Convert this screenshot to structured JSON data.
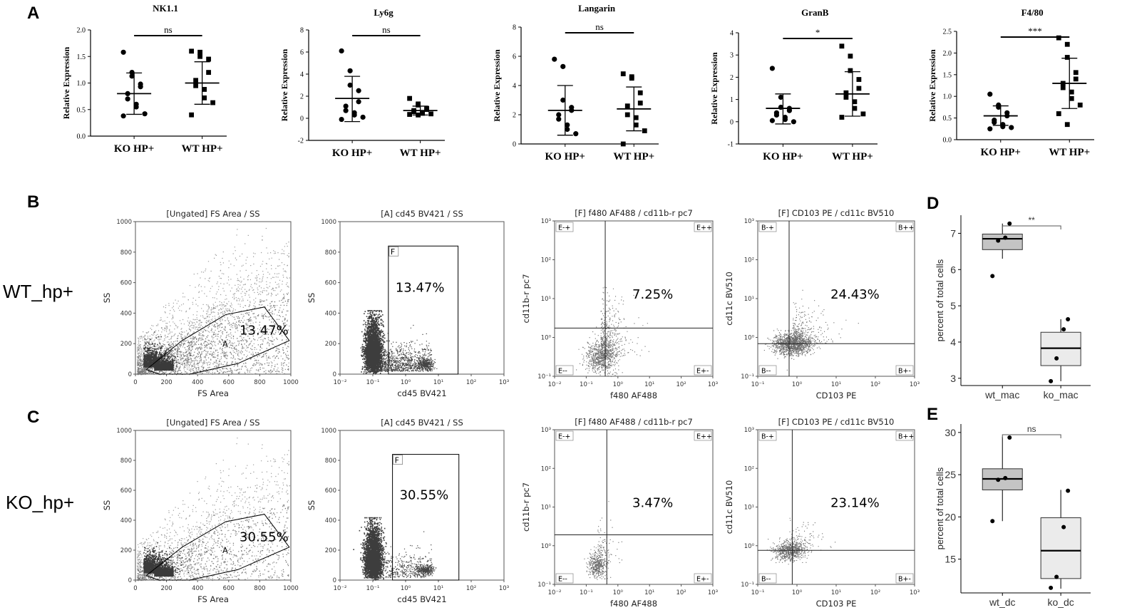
{
  "panel_letters": {
    "A": "A",
    "B": "B",
    "C": "C",
    "D": "D",
    "E": "E"
  },
  "row_labels": {
    "wt": "WT_hp+",
    "ko": "KO_hp+"
  },
  "chart_data": [
    {
      "id": "nk11",
      "type": "scatter",
      "title": "NK1.1",
      "ylabel": "Relative Expression",
      "categories": [
        "KO HP+",
        "WT HP+"
      ],
      "ylim": [
        0,
        2.0
      ],
      "yticks": [
        "0.0",
        "0.5",
        "1.0",
        "1.5",
        "2.0"
      ],
      "ytick_values": [
        0,
        0.5,
        1.0,
        1.5,
        2.0
      ],
      "significance": "ns",
      "series": [
        {
          "name": "KO HP+",
          "marker": "circle",
          "mean": 0.8,
          "sd_low": 0.41,
          "sd_high": 1.19,
          "values": [
            1.58,
            1.2,
            1.13,
            0.98,
            0.93,
            0.8,
            0.7,
            0.6,
            0.55,
            0.42,
            0.38
          ]
        },
        {
          "name": "WT HP+",
          "marker": "square",
          "mean": 1.0,
          "sd_low": 0.6,
          "sd_high": 1.4,
          "values": [
            1.6,
            1.58,
            1.5,
            1.45,
            1.2,
            1.05,
            0.95,
            0.88,
            0.72,
            0.63,
            0.4
          ]
        }
      ]
    },
    {
      "id": "ly6g",
      "type": "scatter",
      "title": "Ly6g",
      "ylabel": "Relative Expression",
      "categories": [
        "KO HP+",
        "WT HP+"
      ],
      "ylim": [
        -2,
        8
      ],
      "yticks": [
        "-2",
        "0",
        "2",
        "4",
        "6",
        "8"
      ],
      "ytick_values": [
        -2,
        0,
        2,
        4,
        6,
        8
      ],
      "significance": "ns",
      "series": [
        {
          "name": "KO HP+",
          "marker": "circle",
          "mean": 1.8,
          "sd_low": -0.3,
          "sd_high": 3.8,
          "values": [
            6.1,
            4.3,
            3.0,
            2.5,
            1.5,
            1.1,
            0.7,
            0.5,
            0.3,
            0.1,
            -0.1
          ]
        },
        {
          "name": "WT HP+",
          "marker": "square",
          "mean": 0.7,
          "sd_low": 0.3,
          "sd_high": 1.1,
          "values": [
            1.8,
            1.3,
            1.2,
            0.9,
            0.8,
            0.7,
            0.6,
            0.5,
            0.45,
            0.4,
            0.35,
            0.3
          ]
        }
      ]
    },
    {
      "id": "langarin",
      "type": "scatter",
      "title": "Langarin",
      "ylabel": "Relative Expression",
      "categories": [
        "KO HP+",
        "WT HP+"
      ],
      "ylim": [
        0,
        8
      ],
      "yticks": [
        "0",
        "2",
        "4",
        "6",
        "8"
      ],
      "ytick_values": [
        0,
        2,
        4,
        6,
        8
      ],
      "significance": "ns",
      "series": [
        {
          "name": "KO HP+",
          "marker": "circle",
          "mean": 2.3,
          "sd_low": 0.6,
          "sd_high": 4.0,
          "values": [
            5.8,
            5.3,
            3.0,
            2.5,
            2.3,
            2.0,
            1.7,
            1.3,
            1.0,
            0.7
          ]
        },
        {
          "name": "WT HP+",
          "marker": "square",
          "mean": 2.4,
          "sd_low": 0.9,
          "sd_high": 3.9,
          "values": [
            4.8,
            4.6,
            4.5,
            3.5,
            2.8,
            2.6,
            2.0,
            1.8,
            1.3,
            0.9,
            0.0
          ]
        }
      ]
    },
    {
      "id": "granb",
      "type": "scatter",
      "title": "GranB",
      "ylabel": "Relative Expression",
      "categories": [
        "KO HP+",
        "WT HP+"
      ],
      "ylim": [
        -1,
        4
      ],
      "yticks": [
        "-1",
        "0",
        "1",
        "2",
        "3",
        "4"
      ],
      "ytick_values": [
        -1,
        0,
        1,
        2,
        3,
        4
      ],
      "significance": "*",
      "series": [
        {
          "name": "KO HP+",
          "marker": "circle",
          "mean": 0.6,
          "sd_low": -0.1,
          "sd_high": 1.25,
          "values": [
            2.4,
            1.1,
            0.65,
            0.6,
            0.5,
            0.4,
            0.3,
            0.2,
            0.1,
            0.0,
            0.05
          ]
        },
        {
          "name": "WT HP+",
          "marker": "square",
          "mean": 1.25,
          "sd_low": 0.25,
          "sd_high": 2.25,
          "values": [
            3.4,
            2.95,
            2.3,
            1.9,
            1.5,
            1.3,
            1.1,
            0.9,
            0.6,
            0.35,
            0.2
          ]
        }
      ]
    },
    {
      "id": "f480",
      "type": "scatter",
      "title": "F4/80",
      "ylabel": "Relative Expression",
      "categories": [
        "KO HP+",
        "WT HP+"
      ],
      "ylim": [
        0,
        2.5
      ],
      "yticks": [
        "0.0",
        "0.5",
        "1.0",
        "1.5",
        "2.0",
        "2.5"
      ],
      "ytick_values": [
        0,
        0.5,
        1.0,
        1.5,
        2.0,
        2.5
      ],
      "significance": "***",
      "series": [
        {
          "name": "KO HP+",
          "marker": "circle",
          "mean": 0.55,
          "sd_low": 0.33,
          "sd_high": 0.78,
          "values": [
            1.05,
            0.8,
            0.75,
            0.62,
            0.55,
            0.45,
            0.4,
            0.35,
            0.3,
            0.28,
            0.25
          ]
        },
        {
          "name": "WT HP+",
          "marker": "square",
          "mean": 1.3,
          "sd_low": 0.72,
          "sd_high": 1.88,
          "values": [
            2.35,
            2.2,
            1.9,
            1.55,
            1.4,
            1.3,
            1.2,
            1.1,
            0.95,
            0.8,
            0.6,
            0.35
          ]
        }
      ]
    },
    {
      "id": "B1",
      "type": "scatter",
      "title": "[Ungated] FS Area / SS",
      "xlabel": "FS Area",
      "ylabel": "SS",
      "xlim": [
        0,
        1000
      ],
      "ylim": [
        0,
        1000
      ],
      "scale": "linear",
      "xticks": [
        "0",
        "200",
        "400",
        "600",
        "800",
        "1000"
      ],
      "yticks": [
        "0",
        "200",
        "400",
        "600",
        "800",
        "1000"
      ],
      "gate_label": "A",
      "gate_percent": "13.47%"
    },
    {
      "id": "B2",
      "type": "scatter",
      "title": "[A] cd45 BV421 / SS",
      "xlabel": "cd45 BV421",
      "ylabel": "SS",
      "xscale": "log",
      "xlim_exp": [
        -2,
        3
      ],
      "ylim": [
        0,
        1000
      ],
      "xticks": [
        "10⁻²",
        "10⁻¹",
        "10⁰",
        "10¹",
        "10²",
        "10³"
      ],
      "yticks": [
        "0",
        "200",
        "400",
        "600",
        "800",
        "1000"
      ],
      "gate_label": "F",
      "gate_percent": "13.47%"
    },
    {
      "id": "B3",
      "type": "scatter",
      "title": "[F] f480 AF488 / cd11b-r pc7",
      "xlabel": "f480 AF488",
      "ylabel": "cd11b-r pc7",
      "xscale": "log",
      "yscale": "log",
      "xticks": [
        "10⁻²",
        "10⁻¹",
        "10⁰",
        "10¹",
        "10²",
        "10³"
      ],
      "yticks": [
        "10⁻¹",
        "10⁰",
        "10¹",
        "10²",
        "10³"
      ],
      "quadrants": {
        "tl": "E-+",
        "tr": "E++",
        "bl": "E--",
        "br": "E+-"
      },
      "gate_percent": "7.25%"
    },
    {
      "id": "B4",
      "type": "scatter",
      "title": "[F] CD103 PE / cd11c BV510",
      "xlabel": "CD103 PE",
      "ylabel": "cd11c BV510",
      "xscale": "log",
      "yscale": "log",
      "xticks": [
        "10⁻¹",
        "10⁰",
        "10¹",
        "10²",
        "10³"
      ],
      "yticks": [
        "10⁻¹",
        "10⁰",
        "10¹",
        "10²",
        "10³"
      ],
      "quadrants": {
        "tl": "B-+",
        "tr": "B++",
        "bl": "B--",
        "br": "B+-"
      },
      "gate_percent": "24.43%"
    },
    {
      "id": "C1",
      "type": "scatter",
      "title": "[Ungated] FS Area / SS",
      "xlabel": "FS Area",
      "ylabel": "SS",
      "xlim": [
        0,
        1000
      ],
      "ylim": [
        0,
        1000
      ],
      "scale": "linear",
      "xticks": [
        "0",
        "200",
        "400",
        "600",
        "800",
        "1000"
      ],
      "yticks": [
        "0",
        "200",
        "400",
        "600",
        "800",
        "1000"
      ],
      "gate_label": "A",
      "gate_percent": "30.55%"
    },
    {
      "id": "C2",
      "type": "scatter",
      "title": "[A] cd45 BV421 / SS",
      "xlabel": "cd45 BV421",
      "ylabel": "SS",
      "xscale": "log",
      "xlim_exp": [
        -2,
        3
      ],
      "ylim": [
        0,
        1000
      ],
      "xticks": [
        "10⁻²",
        "10⁻¹",
        "10⁰",
        "10¹",
        "10²",
        "10³"
      ],
      "yticks": [
        "0",
        "200",
        "400",
        "600",
        "800",
        "1000"
      ],
      "gate_label": "F",
      "gate_percent": "30.55%"
    },
    {
      "id": "C3",
      "type": "scatter",
      "title": "[F] f480 AF488 / cd11b-r pc7",
      "xlabel": "f480 AF488",
      "ylabel": "cd11b-r pc7",
      "xscale": "log",
      "yscale": "log",
      "xticks": [
        "10⁻²",
        "10⁻¹",
        "10⁰",
        "10¹",
        "10²",
        "10³"
      ],
      "yticks": [
        "10⁻¹",
        "10⁰",
        "10¹",
        "10²",
        "10³"
      ],
      "quadrants": {
        "tl": "E-+",
        "tr": "E++",
        "bl": "E--",
        "br": "E+-"
      },
      "gate_percent": "3.47%"
    },
    {
      "id": "C4",
      "type": "scatter",
      "title": "[F] CD103 PE / cd11c BV510",
      "xlabel": "CD103 PE",
      "ylabel": "cd11c BV510",
      "xscale": "log",
      "yscale": "log",
      "xticks": [
        "10⁻¹",
        "10⁰",
        "10¹",
        "10²",
        "10³"
      ],
      "yticks": [
        "10⁻¹",
        "10⁰",
        "10¹",
        "10²",
        "10³"
      ],
      "quadrants": {
        "tl": "B-+",
        "tr": "B++",
        "bl": "B--",
        "br": "B+-"
      },
      "gate_percent": "23.14%"
    },
    {
      "id": "D",
      "type": "box",
      "ylabel": "percent of total cells",
      "categories": [
        "wt_mac",
        "ko_mac"
      ],
      "ylim": [
        2.8,
        7.5
      ],
      "yticks": [
        "3",
        "4",
        "5",
        "6",
        "7"
      ],
      "ytick_values": [
        3,
        4,
        5,
        6,
        7
      ],
      "significance": "**",
      "boxes": [
        {
          "name": "wt_mac",
          "q1": 6.55,
          "median": 6.85,
          "q3": 6.98,
          "whisker_low": 6.3,
          "whisker_high": 7.27,
          "points": [
            7.27,
            6.88,
            6.8,
            5.82
          ],
          "fill": "#c4c4c4"
        },
        {
          "name": "ko_mac",
          "q1": 3.35,
          "median": 3.83,
          "q3": 4.27,
          "whisker_low": 2.92,
          "whisker_high": 4.63,
          "points": [
            4.63,
            4.35,
            3.55,
            2.92
          ],
          "fill": "#ebebeb"
        }
      ]
    },
    {
      "id": "E",
      "type": "box",
      "ylabel": "percent of total cells",
      "categories": [
        "wt_dc",
        "ko_dc"
      ],
      "ylim": [
        11,
        31
      ],
      "yticks": [
        "15",
        "20",
        "25",
        "30"
      ],
      "ytick_values": [
        15,
        20,
        25,
        30
      ],
      "significance": "ns",
      "boxes": [
        {
          "name": "wt_dc",
          "q1": 23.2,
          "median": 24.5,
          "q3": 25.7,
          "whisker_low": 19.5,
          "whisker_high": 29.5,
          "points": [
            29.4,
            24.6,
            24.4,
            19.5
          ],
          "fill": "#c4c4c4"
        },
        {
          "name": "ko_dc",
          "q1": 12.7,
          "median": 16.0,
          "q3": 19.9,
          "whisker_low": 11.5,
          "whisker_high": 23.2,
          "points": [
            23.1,
            18.8,
            12.9,
            11.6
          ],
          "fill": "#ebebeb"
        }
      ]
    }
  ]
}
